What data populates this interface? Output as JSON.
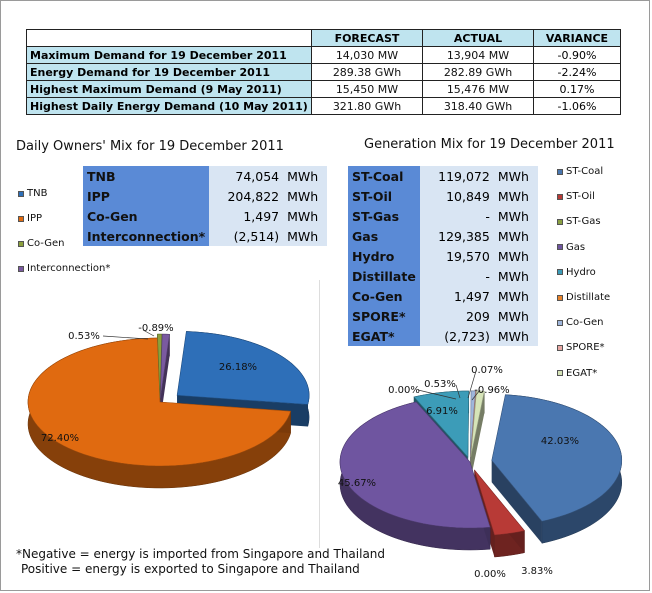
{
  "summary": {
    "headers": [
      "FORECAST",
      "ACTUAL",
      "VARIANCE"
    ],
    "rows": [
      {
        "label": "Maximum Demand for 19 December 2011",
        "forecast": "14,030 MW",
        "actual": "13,904 MW",
        "variance": "-0.90%"
      },
      {
        "label": "Energy Demand for 19 December 2011",
        "forecast": "289.38 GWh",
        "actual": "282.89 GWh",
        "variance": "-2.24%"
      },
      {
        "label": "Highest Maximum Demand (9 May 2011)",
        "forecast": "15,450 MW",
        "actual": "15,476 MW",
        "variance": "0.17%"
      },
      {
        "label": "Highest Daily Energy Demand (10 May 2011)",
        "forecast": "321.80 GWh",
        "actual": "318.40 GWh",
        "variance": "-1.06%"
      }
    ]
  },
  "owners_table": {
    "rows": [
      {
        "name": "TNB",
        "value": "74,054",
        "unit": "MWh"
      },
      {
        "name": "IPP",
        "value": "204,822",
        "unit": "MWh"
      },
      {
        "name": "Co-Gen",
        "value": "1,497",
        "unit": "MWh"
      },
      {
        "name": "Interconnection*",
        "value": "(2,514)",
        "unit": "MWh"
      }
    ]
  },
  "generation_table": {
    "rows": [
      {
        "name": "ST-Coal",
        "value": "119,072",
        "unit": "MWh"
      },
      {
        "name": "ST-Oil",
        "value": "10,849",
        "unit": "MWh"
      },
      {
        "name": "ST-Gas",
        "value": "-",
        "unit": "MWh"
      },
      {
        "name": "Gas",
        "value": "129,385",
        "unit": "MWh"
      },
      {
        "name": "Hydro",
        "value": "19,570",
        "unit": "MWh"
      },
      {
        "name": "Distillate",
        "value": "-",
        "unit": "MWh"
      },
      {
        "name": "Co-Gen",
        "value": "1,497",
        "unit": "MWh"
      },
      {
        "name": "SPORE*",
        "value": "209",
        "unit": "MWh"
      },
      {
        "name": "EGAT*",
        "value": "(2,723)",
        "unit": "MWh"
      }
    ]
  },
  "footnote": {
    "line1": "*Negative = energy is imported from Singapore and Thailand",
    "line2": "Positive = energy is exported to Singapore and Thailand"
  },
  "chart_data": [
    {
      "type": "pie",
      "title": "Daily Owners' Mix for 19 December 2011",
      "legend_position": "left",
      "categories": [
        "TNB",
        "IPP",
        "Co-Gen",
        "Interconnection*"
      ],
      "values": [
        26.18,
        72.4,
        0.53,
        -0.89
      ],
      "data_labels": [
        "26.18%",
        "72.40%",
        "0.53%",
        "-0.89%"
      ],
      "colors": [
        "#2e6fb8",
        "#e06a10",
        "#8ba03c",
        "#7a5aa0"
      ]
    },
    {
      "type": "pie",
      "title": "Generation Mix for 19 December 2011",
      "legend_position": "right",
      "categories": [
        "ST-Coal",
        "ST-Oil",
        "ST-Gas",
        "Gas",
        "Hydro",
        "Distillate",
        "Co-Gen",
        "SPORE*",
        "EGAT*"
      ],
      "values": [
        42.03,
        3.83,
        0.0,
        45.67,
        6.91,
        0.0,
        0.53,
        0.07,
        -0.96
      ],
      "data_labels": [
        "42.03%",
        "3.83%",
        "0.00%",
        "45.67%",
        "6.91%",
        "0.00%",
        "0.53%",
        "0.07%",
        "-0.96%"
      ],
      "colors": [
        "#4a77b0",
        "#b83a36",
        "#8aa042",
        "#6f55a0",
        "#3c9cb8",
        "#e8832c",
        "#9fb6dc",
        "#e8a8a4",
        "#d6e4b8"
      ]
    }
  ]
}
